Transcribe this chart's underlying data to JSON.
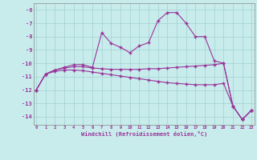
{
  "bg_color": "#c8ecec",
  "grid_color": "#a0d0d0",
  "line_color": "#993399",
  "xlim": [
    -0.3,
    23.3
  ],
  "ylim": [
    -14.6,
    -5.5
  ],
  "x_ticks": [
    0,
    1,
    2,
    3,
    4,
    5,
    6,
    7,
    8,
    9,
    10,
    11,
    12,
    13,
    14,
    15,
    16,
    17,
    18,
    19,
    20,
    21,
    22,
    23
  ],
  "y_ticks": [
    -14,
    -13,
    -12,
    -11,
    -10,
    -9,
    -8,
    -7,
    -6
  ],
  "xlabel": "Windchill (Refroidissement éolien,°C)",
  "series": [
    {
      "x": [
        0,
        1,
        2,
        3,
        4,
        5,
        6,
        7,
        8,
        9,
        10,
        11,
        12,
        13,
        14,
        15,
        16,
        17,
        18,
        19,
        20,
        21,
        22,
        23
      ],
      "y": [
        -12.0,
        -10.8,
        -10.5,
        -10.3,
        -10.1,
        -10.1,
        -10.3,
        -7.7,
        -8.5,
        -8.8,
        -9.2,
        -8.7,
        -8.45,
        -6.8,
        -6.2,
        -6.2,
        -7.0,
        -8.0,
        -8.0,
        -9.8,
        -10.0,
        -13.2,
        -14.2,
        -13.5
      ]
    },
    {
      "x": [
        0,
        1,
        2,
        3,
        4,
        5,
        6,
        7,
        8,
        9,
        10,
        11,
        12,
        13,
        14,
        15,
        16,
        17,
        18,
        19,
        20,
        21,
        22,
        23
      ],
      "y": [
        -12.0,
        -10.8,
        -10.5,
        -10.35,
        -10.25,
        -10.25,
        -10.35,
        -10.4,
        -10.45,
        -10.45,
        -10.45,
        -10.45,
        -10.4,
        -10.4,
        -10.35,
        -10.3,
        -10.25,
        -10.2,
        -10.15,
        -10.1,
        -10.0,
        -13.2,
        -14.2,
        -13.5
      ]
    },
    {
      "x": [
        0,
        1,
        2,
        3,
        4,
        5,
        6,
        7,
        8,
        9,
        10,
        11,
        12,
        13,
        14,
        15,
        16,
        17,
        18,
        19,
        20,
        21,
        22,
        23
      ],
      "y": [
        -12.0,
        -10.8,
        -10.6,
        -10.5,
        -10.5,
        -10.55,
        -10.65,
        -10.75,
        -10.85,
        -10.95,
        -11.05,
        -11.15,
        -11.25,
        -11.35,
        -11.45,
        -11.5,
        -11.55,
        -11.6,
        -11.6,
        -11.6,
        -11.5,
        -13.2,
        -14.2,
        -13.5
      ]
    }
  ]
}
